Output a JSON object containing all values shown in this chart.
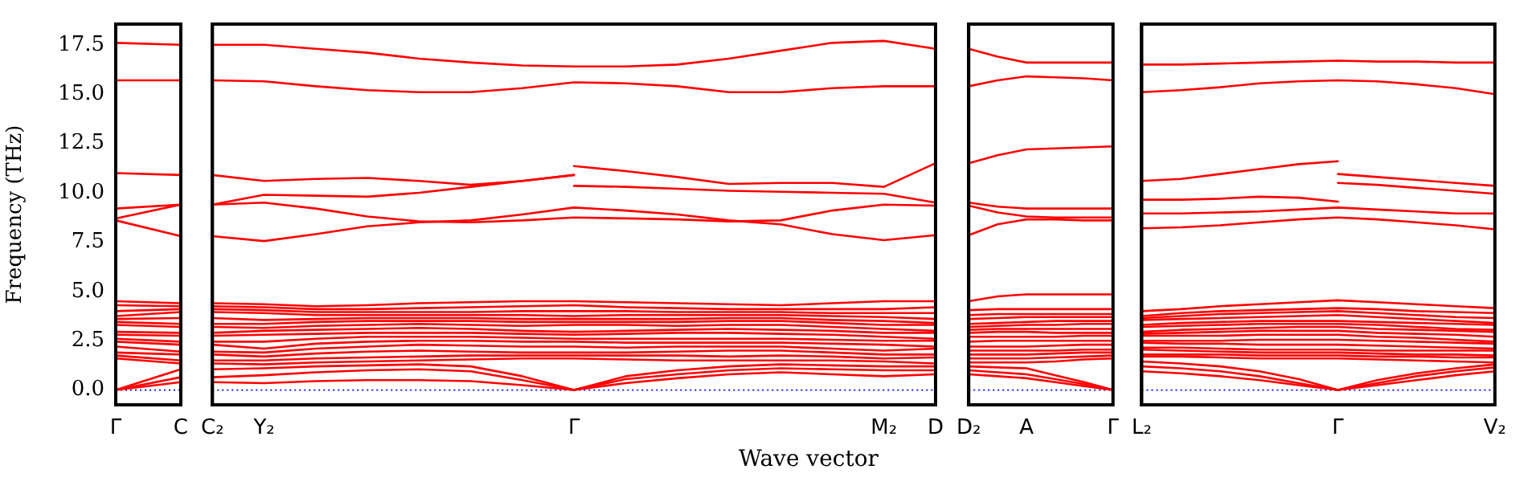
{
  "chart_data": [
    {
      "type": "line",
      "color": "#ff0000",
      "marker": "none",
      "ylabel": "Frequency (THz)",
      "categories": [
        "Γ",
        "C"
      ],
      "ylim": [
        -0.75,
        18.55
      ],
      "yticks": [
        {
          "value": 0,
          "label": "0.0"
        },
        2.5,
        {
          "value": 5,
          "label": "5.0"
        },
        7.5,
        {
          "value": 10,
          "label": "10.0"
        },
        12.5,
        {
          "value": 15,
          "label": "15.0"
        },
        17.5
      ],
      "ref_lines": [
        {
          "axis": "y",
          "value": 0,
          "color": "#0000ff",
          "line_style": "dotted"
        }
      ],
      "series": [
        {
          "values": [
            17.6,
            17.5
          ]
        },
        {
          "values": [
            15.7,
            15.7
          ]
        },
        {
          "values": [
            11.0,
            10.9
          ]
        },
        {
          "values": [
            9.2,
            9.4
          ]
        },
        {
          "values": [
            8.7,
            9.4
          ]
        },
        {
          "values": [
            8.6,
            7.8
          ]
        },
        {
          "values": [
            0,
            0.4
          ]
        },
        {
          "values": [
            0,
            0.65
          ]
        },
        {
          "values": [
            0,
            1.05
          ]
        },
        {
          "values": [
            1.6,
            1.35
          ]
        },
        {
          "values": [
            1.75,
            1.5
          ]
        },
        {
          "values": [
            1.9,
            1.8
          ]
        },
        {
          "values": [
            2.2,
            1.95
          ]
        },
        {
          "values": [
            2.45,
            2.3
          ]
        },
        {
          "values": [
            2.6,
            2.45
          ]
        },
        {
          "values": [
            2.8,
            2.75
          ]
        },
        {
          "values": [
            2.95,
            2.9
          ]
        },
        {
          "values": [
            3.3,
            3.2
          ]
        },
        {
          "values": [
            3.45,
            3.35
          ]
        },
        {
          "values": [
            3.6,
            3.65
          ]
        },
        {
          "values": [
            3.75,
            3.95
          ]
        },
        {
          "values": [
            4.0,
            4.1
          ]
        },
        {
          "values": [
            4.3,
            4.25
          ]
        },
        {
          "values": [
            4.5,
            4.4
          ]
        }
      ]
    },
    {
      "type": "line",
      "color": "#ff0000",
      "marker": "none",
      "tick_labels": "x",
      "xlabel": "Wave vector",
      "categories": [
        "C₂",
        "Y₂",
        null,
        null,
        null,
        null,
        null,
        "Γ",
        null,
        null,
        null,
        null,
        null,
        "M₂",
        "D"
      ],
      "ylim": [
        -0.75,
        18.55
      ],
      "ref_lines": [
        {
          "axis": "y",
          "value": 0,
          "color": "#0000ff",
          "line_style": "dotted"
        }
      ],
      "series": [
        {
          "values": [
            17.5,
            17.5,
            17.3,
            17.1,
            16.8,
            16.6,
            16.45,
            16.4,
            16.4,
            16.5,
            16.8,
            17.2,
            17.6,
            17.7,
            17.3
          ]
        },
        {
          "values": [
            15.7,
            15.65,
            15.4,
            15.2,
            15.1,
            15.1,
            15.3,
            15.6,
            15.55,
            15.4,
            15.1,
            15.1,
            15.3,
            15.4,
            15.4
          ]
        },
        {
          "values": [
            10.9,
            10.6,
            10.7,
            10.75,
            10.6,
            10.4,
            10.6,
            10.9,
            null,
            null,
            null,
            null,
            null,
            null,
            null
          ]
        },
        {
          "values": [
            9.4,
            9.9,
            9.85,
            9.8,
            10.0,
            10.3,
            10.6,
            10.9,
            null,
            null,
            null,
            null,
            null,
            null,
            null
          ]
        },
        {
          "values": [
            null,
            null,
            null,
            null,
            null,
            null,
            null,
            11.35,
            11.1,
            10.8,
            10.45,
            10.5,
            10.5,
            10.3,
            11.5
          ]
        },
        {
          "values": [
            null,
            null,
            null,
            null,
            null,
            null,
            null,
            10.35,
            10.3,
            10.2,
            10.1,
            10.05,
            10.0,
            9.95,
            9.5
          ]
        },
        {
          "values": [
            9.4,
            9.5,
            9.2,
            8.8,
            8.55,
            8.5,
            8.6,
            8.75,
            8.7,
            8.65,
            8.55,
            8.6,
            9.1,
            9.4,
            9.35
          ]
        },
        {
          "values": [
            7.8,
            7.55,
            7.9,
            8.3,
            8.5,
            8.6,
            8.9,
            9.25,
            9.1,
            8.9,
            8.6,
            8.4,
            7.9,
            7.6,
            7.85
          ]
        },
        {
          "values": [
            0.4,
            0.35,
            0.45,
            0.5,
            0.5,
            0.45,
            0.25,
            0,
            0.35,
            0.6,
            0.8,
            0.9,
            0.8,
            0.7,
            0.8
          ]
        },
        {
          "values": [
            0.65,
            0.75,
            0.9,
            1.0,
            1.05,
            0.95,
            0.5,
            0,
            0.55,
            0.8,
            1.0,
            1.1,
            1.05,
            1.0,
            1.0
          ]
        },
        {
          "values": [
            1.05,
            1.1,
            1.2,
            1.25,
            1.3,
            1.2,
            0.7,
            0,
            0.7,
            1.0,
            1.2,
            1.3,
            1.25,
            1.2,
            1.2
          ]
        },
        {
          "values": [
            1.35,
            1.3,
            1.4,
            1.45,
            1.5,
            1.55,
            1.6,
            1.6,
            1.55,
            1.5,
            1.5,
            1.5,
            1.5,
            1.45,
            1.35
          ]
        },
        {
          "values": [
            1.5,
            1.5,
            1.6,
            1.65,
            1.7,
            1.75,
            1.75,
            1.75,
            1.75,
            1.75,
            1.7,
            1.75,
            1.7,
            1.6,
            1.65
          ]
        },
        {
          "values": [
            1.8,
            1.7,
            1.85,
            1.95,
            2.0,
            1.95,
            1.9,
            1.9,
            1.9,
            1.95,
            2.0,
            2.0,
            1.9,
            1.8,
            1.8
          ]
        },
        {
          "values": [
            1.95,
            1.9,
            2.1,
            2.2,
            2.3,
            2.25,
            2.2,
            2.2,
            2.15,
            2.2,
            2.2,
            2.2,
            2.1,
            2.0,
            2.1
          ]
        },
        {
          "values": [
            2.3,
            2.1,
            2.35,
            2.45,
            2.5,
            2.5,
            2.45,
            2.45,
            2.4,
            2.4,
            2.4,
            2.4,
            2.35,
            2.3,
            2.2
          ]
        },
        {
          "values": [
            2.45,
            2.45,
            2.6,
            2.7,
            2.7,
            2.7,
            2.65,
            2.6,
            2.6,
            2.6,
            2.6,
            2.6,
            2.55,
            2.5,
            2.5
          ]
        },
        {
          "values": [
            2.75,
            2.8,
            2.85,
            2.9,
            2.9,
            2.9,
            2.85,
            2.8,
            2.85,
            2.9,
            2.9,
            2.85,
            2.8,
            2.7,
            2.6
          ]
        },
        {
          "values": [
            2.9,
            3.0,
            3.05,
            3.1,
            3.15,
            3.1,
            3.0,
            2.95,
            3.0,
            3.05,
            3.1,
            3.05,
            3.0,
            2.9,
            2.9
          ]
        },
        {
          "values": [
            3.2,
            3.15,
            3.25,
            3.3,
            3.35,
            3.3,
            3.25,
            3.3,
            3.3,
            3.25,
            3.3,
            3.3,
            3.2,
            3.1,
            3.0
          ]
        },
        {
          "values": [
            3.35,
            3.35,
            3.45,
            3.5,
            3.5,
            3.5,
            3.45,
            3.45,
            3.45,
            3.45,
            3.5,
            3.5,
            3.4,
            3.3,
            3.3
          ]
        },
        {
          "values": [
            3.65,
            3.55,
            3.6,
            3.65,
            3.65,
            3.65,
            3.6,
            3.6,
            3.6,
            3.6,
            3.65,
            3.65,
            3.55,
            3.5,
            3.4
          ]
        },
        {
          "values": [
            3.95,
            3.9,
            3.8,
            3.8,
            3.8,
            3.8,
            3.8,
            3.75,
            3.8,
            3.8,
            3.8,
            3.8,
            3.75,
            3.7,
            3.6
          ]
        },
        {
          "values": [
            4.1,
            4.05,
            3.95,
            3.95,
            3.95,
            3.95,
            4.0,
            4.0,
            4.0,
            3.95,
            3.95,
            3.95,
            3.9,
            3.9,
            3.9
          ]
        },
        {
          "values": [
            4.25,
            4.2,
            4.1,
            4.1,
            4.15,
            4.2,
            4.25,
            4.3,
            4.2,
            4.15,
            4.1,
            4.1,
            4.1,
            4.1,
            4.2
          ]
        },
        {
          "values": [
            4.4,
            4.35,
            4.25,
            4.3,
            4.4,
            4.45,
            4.5,
            4.5,
            4.45,
            4.4,
            4.35,
            4.3,
            4.4,
            4.5,
            4.5
          ]
        }
      ]
    },
    {
      "type": "line",
      "color": "#ff0000",
      "marker": "none",
      "tick_labels": "x",
      "categories": [
        "D₂",
        null,
        "A",
        null,
        null,
        "Γ"
      ],
      "ylim": [
        -0.75,
        18.55
      ],
      "ref_lines": [
        {
          "axis": "y",
          "value": 0,
          "color": "#0000ff",
          "line_style": "dotted"
        }
      ],
      "series": [
        {
          "values": [
            17.3,
            16.9,
            16.6,
            16.6,
            16.6,
            16.6
          ]
        },
        {
          "values": [
            15.4,
            15.7,
            15.9,
            15.85,
            15.8,
            15.7
          ]
        },
        {
          "values": [
            11.5,
            11.9,
            12.2,
            12.25,
            12.3,
            12.35
          ]
        },
        {
          "values": [
            9.5,
            9.3,
            9.2,
            9.2,
            9.2,
            9.2
          ]
        },
        {
          "values": [
            9.35,
            9.0,
            8.8,
            8.75,
            8.75,
            8.75
          ]
        },
        {
          "values": [
            7.85,
            8.4,
            8.65,
            8.65,
            8.6,
            8.6
          ]
        },
        {
          "values": [
            0.8,
            0.7,
            0.6,
            0.4,
            0.2,
            0
          ]
        },
        {
          "values": [
            1.0,
            0.9,
            0.8,
            0.55,
            0.3,
            0
          ]
        },
        {
          "values": [
            1.2,
            1.15,
            1.1,
            0.75,
            0.4,
            0
          ]
        },
        {
          "values": [
            1.4,
            1.4,
            1.4,
            1.45,
            1.55,
            1.6
          ]
        },
        {
          "values": [
            1.6,
            1.6,
            1.6,
            1.65,
            1.7,
            1.75
          ]
        },
        {
          "values": [
            1.8,
            1.8,
            1.8,
            1.85,
            1.9,
            1.9
          ]
        },
        {
          "values": [
            2.0,
            2.0,
            2.0,
            2.0,
            2.05,
            2.05
          ]
        },
        {
          "values": [
            2.2,
            2.2,
            2.2,
            2.25,
            2.3,
            2.3
          ]
        },
        {
          "values": [
            2.45,
            2.5,
            2.5,
            2.5,
            2.5,
            2.5
          ]
        },
        {
          "values": [
            2.7,
            2.7,
            2.7,
            2.7,
            2.75,
            2.75
          ]
        },
        {
          "values": [
            2.9,
            2.95,
            2.95,
            2.9,
            2.9,
            2.9
          ]
        },
        {
          "values": [
            3.05,
            3.1,
            3.1,
            3.1,
            3.1,
            3.1
          ]
        },
        {
          "values": [
            3.2,
            3.25,
            3.3,
            3.3,
            3.35,
            3.35
          ]
        },
        {
          "values": [
            3.35,
            3.4,
            3.45,
            3.5,
            3.5,
            3.5
          ]
        },
        {
          "values": [
            3.6,
            3.65,
            3.7,
            3.7,
            3.7,
            3.7
          ]
        },
        {
          "values": [
            3.8,
            3.85,
            3.85,
            3.85,
            3.85,
            3.85
          ]
        },
        {
          "values": [
            4.05,
            4.1,
            4.1,
            4.1,
            4.1,
            4.1
          ]
        },
        {
          "values": [
            4.5,
            4.75,
            4.85,
            4.85,
            4.85,
            4.85
          ]
        }
      ]
    },
    {
      "type": "line",
      "color": "#ff0000",
      "marker": "none",
      "tick_labels": "x",
      "categories": [
        "L₂",
        null,
        null,
        null,
        null,
        "Γ",
        null,
        null,
        null,
        "V₂"
      ],
      "ylim": [
        -0.75,
        18.55
      ],
      "ref_lines": [
        {
          "axis": "y",
          "value": 0,
          "color": "#0000ff",
          "line_style": "dotted"
        }
      ],
      "series": [
        {
          "values": [
            16.5,
            16.5,
            16.55,
            16.6,
            16.65,
            16.7,
            16.65,
            16.65,
            16.6,
            16.6
          ]
        },
        {
          "values": [
            15.1,
            15.2,
            15.35,
            15.55,
            15.65,
            15.7,
            15.65,
            15.5,
            15.3,
            15.0
          ]
        },
        {
          "values": [
            10.6,
            10.7,
            10.95,
            11.2,
            11.45,
            11.6,
            null,
            null,
            null,
            null
          ]
        },
        {
          "values": [
            9.65,
            9.65,
            9.7,
            9.8,
            9.75,
            9.55,
            null,
            null,
            null,
            null
          ]
        },
        {
          "values": [
            null,
            null,
            null,
            null,
            null,
            10.95,
            10.8,
            10.65,
            10.5,
            10.35
          ]
        },
        {
          "values": [
            null,
            null,
            null,
            null,
            null,
            10.5,
            10.4,
            10.25,
            10.1,
            9.95
          ]
        },
        {
          "values": [
            8.95,
            8.95,
            9.0,
            9.05,
            9.15,
            9.25,
            9.15,
            9.05,
            8.95,
            8.95
          ]
        },
        {
          "values": [
            8.2,
            8.25,
            8.35,
            8.5,
            8.65,
            8.75,
            8.65,
            8.5,
            8.35,
            8.15
          ]
        },
        {
          "values": [
            0.95,
            0.85,
            0.7,
            0.5,
            0.25,
            0,
            0.25,
            0.5,
            0.75,
            0.95
          ]
        },
        {
          "values": [
            1.2,
            1.1,
            0.95,
            0.7,
            0.35,
            0,
            0.35,
            0.7,
            0.95,
            1.15
          ]
        },
        {
          "values": [
            1.45,
            1.35,
            1.2,
            0.95,
            0.55,
            0,
            0.5,
            0.85,
            1.1,
            1.3
          ]
        },
        {
          "values": [
            1.7,
            1.7,
            1.65,
            1.6,
            1.6,
            1.6,
            1.55,
            1.5,
            1.45,
            1.4
          ]
        },
        {
          "values": [
            1.8,
            1.8,
            1.8,
            1.75,
            1.75,
            1.75,
            1.7,
            1.7,
            1.65,
            1.65
          ]
        },
        {
          "values": [
            2.05,
            2.0,
            1.95,
            1.9,
            1.9,
            1.9,
            1.85,
            1.8,
            1.8,
            1.75
          ]
        },
        {
          "values": [
            2.15,
            2.15,
            2.1,
            2.05,
            2.05,
            2.05,
            2.0,
            2.0,
            2.0,
            2.0
          ]
        },
        {
          "values": [
            2.4,
            2.35,
            2.35,
            2.3,
            2.3,
            2.3,
            2.25,
            2.2,
            2.15,
            2.1
          ]
        },
        {
          "values": [
            2.5,
            2.5,
            2.5,
            2.55,
            2.55,
            2.55,
            2.5,
            2.45,
            2.4,
            2.35
          ]
        },
        {
          "values": [
            2.75,
            2.75,
            2.75,
            2.8,
            2.8,
            2.8,
            2.7,
            2.65,
            2.55,
            2.45
          ]
        },
        {
          "values": [
            2.85,
            2.9,
            2.95,
            3.0,
            3.0,
            3.0,
            2.9,
            2.85,
            2.8,
            2.7
          ]
        },
        {
          "values": [
            2.95,
            3.05,
            3.1,
            3.15,
            3.2,
            3.2,
            3.1,
            3.05,
            3.0,
            2.95
          ]
        },
        {
          "values": [
            3.2,
            3.25,
            3.3,
            3.35,
            3.35,
            3.35,
            3.3,
            3.2,
            3.1,
            3.05
          ]
        },
        {
          "values": [
            3.3,
            3.4,
            3.45,
            3.5,
            3.5,
            3.5,
            3.45,
            3.4,
            3.35,
            3.3
          ]
        },
        {
          "values": [
            3.55,
            3.6,
            3.65,
            3.7,
            3.75,
            3.8,
            3.7,
            3.6,
            3.5,
            3.4
          ]
        },
        {
          "values": [
            3.65,
            3.75,
            3.85,
            3.9,
            3.95,
            4.0,
            3.9,
            3.8,
            3.7,
            3.65
          ]
        },
        {
          "values": [
            3.75,
            3.9,
            4.0,
            4.05,
            4.1,
            4.15,
            4.1,
            4.0,
            3.95,
            3.9
          ]
        },
        {
          "values": [
            4.0,
            4.1,
            4.25,
            4.35,
            4.45,
            4.55,
            4.45,
            4.35,
            4.25,
            4.15
          ]
        }
      ]
    }
  ]
}
